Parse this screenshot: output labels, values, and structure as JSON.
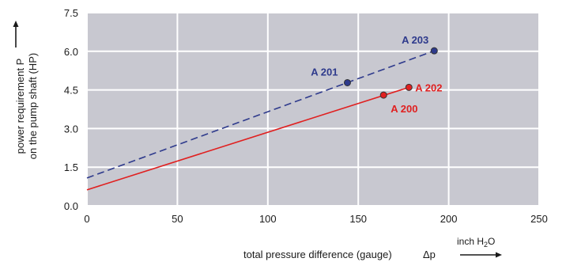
{
  "chart_data": {
    "type": "line",
    "xlabel": "total pressure difference (gauge)",
    "xsymbol": "Δp",
    "xunit": "inch H",
    "xunit_sub": "2",
    "xunit_suffix": "O",
    "ylabel_line1": "power requirement P",
    "ylabel_line2": "on the pump shaft (HP)",
    "xlim": [
      0,
      250
    ],
    "ylim": [
      0,
      7.5
    ],
    "xticks": [
      "0",
      "50",
      "100",
      "150",
      "200",
      "250"
    ],
    "xtick_values": [
      0,
      50,
      100,
      150,
      200,
      250
    ],
    "yticks": [
      "0.0",
      "1.5",
      "3.0",
      "4.5",
      "6.0",
      "7.5"
    ],
    "ytick_values": [
      0,
      1.5,
      3.0,
      4.5,
      6.0,
      7.5
    ],
    "grid": true,
    "background": "#c8c8d0",
    "series": [
      {
        "color": "#e02020",
        "dash": "solid",
        "x": [
          0,
          178
        ],
        "y": [
          0.62,
          4.6
        ],
        "points": [
          {
            "label": "A 200",
            "x": 164,
            "y": 4.3
          },
          {
            "label": "A 202",
            "x": 178,
            "y": 4.6
          }
        ]
      },
      {
        "color": "#2e3a8c",
        "dash": "dashed",
        "x": [
          0,
          192
        ],
        "y": [
          1.08,
          6.02
        ],
        "points": [
          {
            "label": "A 201",
            "x": 144,
            "y": 4.78
          },
          {
            "label": "A 203",
            "x": 192,
            "y": 6.02
          }
        ]
      }
    ]
  }
}
